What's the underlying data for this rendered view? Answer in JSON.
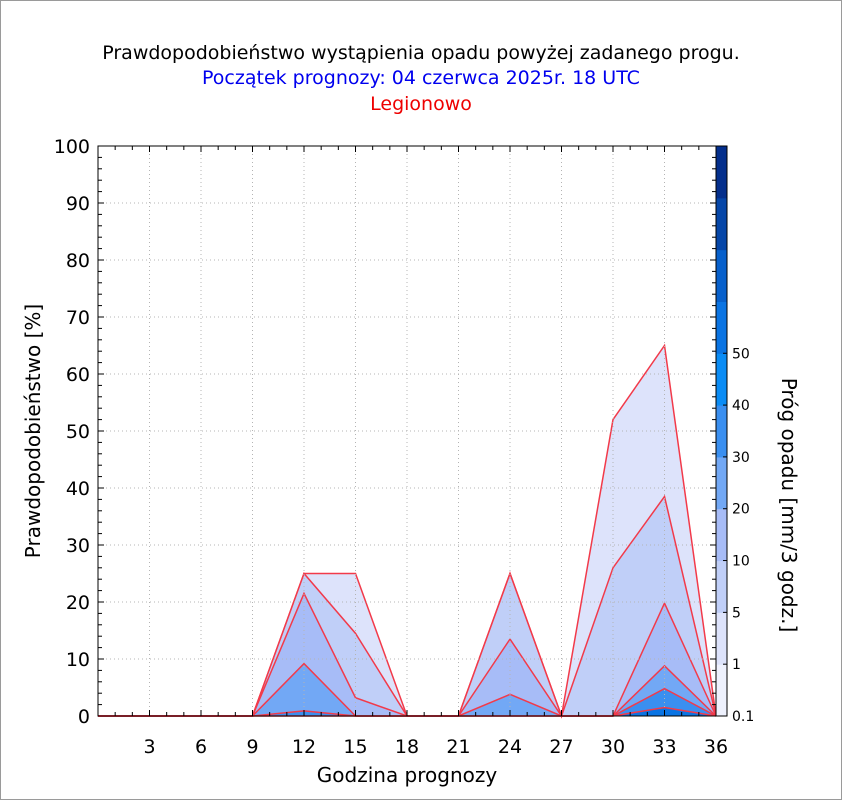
{
  "colors": {
    "title": "#000000",
    "subtitle": "#0000ee",
    "location": "#ee0000",
    "edge": "#f23a4a",
    "level_fills": [
      "#dde3fb",
      "#c0cff8",
      "#a7bcf7",
      "#72a8f5",
      "#3a8ff0",
      "#0a74e3"
    ]
  },
  "chart_data": {
    "type": "area",
    "title": "Prawdopodobieństwo wystąpienia opadu powyżej zadanego progu.",
    "subtitle": "Początek prognozy: 04 czerwca 2025r. 18 UTC",
    "location": "Legionowo",
    "xlabel": "Godzina prognozy",
    "ylabel": "Prawdopodobieństwo [%]",
    "colorbar_label": "Próg opadu [mm/3 godz.]",
    "xlim": [
      0,
      36
    ],
    "ylim": [
      0,
      100
    ],
    "x_ticks": [
      3,
      6,
      9,
      12,
      15,
      18,
      21,
      24,
      27,
      30,
      33,
      36
    ],
    "y_ticks": [
      0,
      10,
      20,
      30,
      40,
      50,
      60,
      70,
      80,
      90,
      100
    ],
    "colorbar_ticks": [
      "0.1",
      "1",
      "5",
      "10",
      "20",
      "30",
      "40",
      "50"
    ],
    "colorbar_colors": [
      "#eef1fd",
      "#dde3fb",
      "#c0cff8",
      "#a7bcf7",
      "#72a8f5",
      "#3a8ff0",
      "#0a8cf5",
      "#0a74e3",
      "#0760cc",
      "#0546a8",
      "#042f8c"
    ],
    "grid": true,
    "x": [
      0,
      3,
      6,
      9,
      12,
      15,
      18,
      21,
      24,
      27,
      30,
      33,
      36
    ],
    "series": [
      {
        "threshold": "0.1",
        "values": [
          0,
          0,
          0,
          0,
          25,
          25,
          0,
          0,
          25,
          0,
          52,
          65,
          0
        ]
      },
      {
        "threshold": "1",
        "values": [
          0,
          0,
          0,
          0,
          25,
          14.5,
          0,
          0,
          25,
          0,
          26,
          38.5,
          0
        ]
      },
      {
        "threshold": "5",
        "values": [
          0,
          0,
          0,
          0,
          21.5,
          3.2,
          0,
          0,
          13.5,
          0,
          0,
          19.8,
          0
        ]
      },
      {
        "threshold": "10",
        "values": [
          0,
          0,
          0,
          0,
          9.2,
          0,
          0,
          0,
          3.8,
          0,
          0,
          8.8,
          0
        ]
      },
      {
        "threshold": "20",
        "values": [
          0,
          0,
          0,
          0,
          0.9,
          0,
          0,
          0,
          0,
          0,
          0,
          4.8,
          0
        ]
      },
      {
        "threshold": "30",
        "values": [
          0,
          0,
          0,
          0,
          0,
          0,
          0,
          0,
          0,
          0,
          0,
          1.5,
          0
        ]
      }
    ]
  }
}
